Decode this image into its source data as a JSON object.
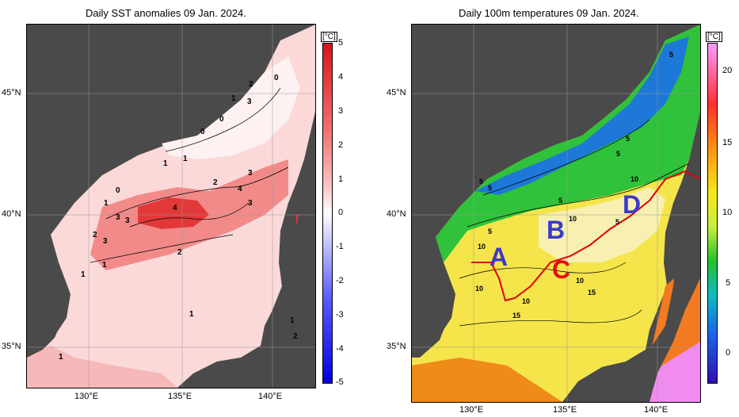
{
  "left_panel": {
    "title": "Daily SST anomalies 09 Jan. 2024.",
    "lat_ticks": [
      "45°N",
      "40°N",
      "35°N"
    ],
    "lon_ticks": [
      "130°E",
      "135°E",
      "140°E"
    ],
    "colorbar": {
      "unit": "[°C]",
      "labels": [
        "5",
        "4",
        "3",
        "2",
        "1",
        "0",
        "-1",
        "-2",
        "-3",
        "-4",
        "-5"
      ],
      "colors": [
        "#d8151c",
        "#f46d6d",
        "#fbc3c3",
        "#ffffff",
        "#c8c8ff",
        "#5a5aff",
        "#0000e0"
      ]
    },
    "contour_labels": [
      "0",
      "2",
      "1",
      "3",
      "0",
      "0",
      "1",
      "1",
      "2",
      "3",
      "4",
      "3",
      "0",
      "1",
      "4",
      "3",
      "3",
      "2",
      "3",
      "1",
      "2",
      "1",
      "1",
      "1",
      "1",
      "2"
    ]
  },
  "right_panel": {
    "title": "Daily 100m temperatures 09 Jan. 2024.",
    "lat_ticks": [
      "45°N",
      "40°N",
      "35°N"
    ],
    "lon_ticks": [
      "130°E",
      "135°E",
      "140°E"
    ],
    "colorbar": {
      "unit": "[°C]",
      "labels": [
        "20",
        "15",
        "10",
        "5",
        "0"
      ],
      "colors": [
        "#ff9cff",
        "#ff3030",
        "#ff9a10",
        "#f7e81a",
        "#c8ee40",
        "#25c02d",
        "#0fbbc0",
        "#2060e8",
        "#3010b0"
      ]
    },
    "region_labels": [
      "A",
      "B",
      "C",
      "D"
    ],
    "contour_labels": [
      "5",
      "5",
      "5",
      "5",
      "5",
      "5",
      "5",
      "10",
      "10",
      "5",
      "10",
      "10",
      "10",
      "15",
      "10",
      "15"
    ]
  },
  "colors": {
    "land": "#4a4a4a",
    "no_data": "#c8c8c8",
    "region_label": "#3b3bc8",
    "region_c": "#e01010",
    "front_line": "#e00000"
  }
}
